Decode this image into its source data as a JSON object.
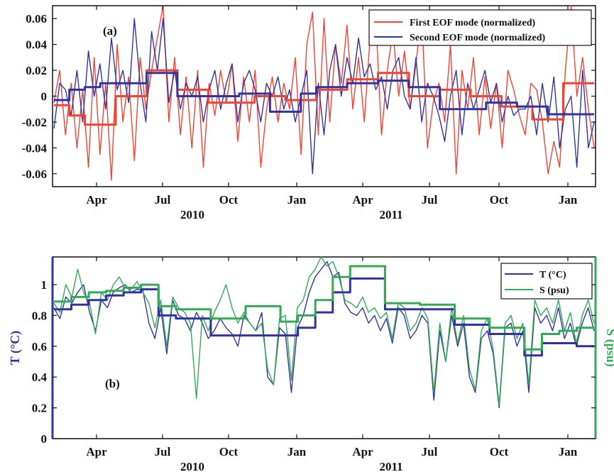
{
  "chart_data": [
    {
      "type": "line",
      "panel_label": "(a)",
      "x_ticks": [
        "Apr",
        "Jul",
        "Oct",
        "Jan",
        "Apr",
        "Jul",
        "Oct",
        "Jan"
      ],
      "x_year_labels": [
        "2010",
        "2011"
      ],
      "y_ticks": [
        "0.06",
        "0.04",
        "0.02",
        "0",
        "-0.02",
        "-0.04",
        "-0.06"
      ],
      "ylim": [
        -0.07,
        0.07
      ],
      "xlim": [
        "2010-02-10",
        "2012-02-10"
      ],
      "legend_position": "top-right",
      "grid": false,
      "series": [
        {
          "name": "First EOF mode (normalized)",
          "color": "#ee4433",
          "values": [
            -0.005,
            0.02,
            -0.03,
            0.01,
            -0.04,
            0.005,
            -0.055,
            0.03,
            -0.045,
            0.01,
            -0.065,
            0.04,
            -0.02,
            0.015,
            -0.05,
            0.03,
            -0.01,
            0.02,
            0.045,
            0.07,
            -0.02,
            0.03,
            -0.03,
            0.015,
            -0.04,
            0.02,
            -0.055,
            0.01,
            -0.015,
            0.02,
            -0.005,
            0.025,
            -0.035,
            0.015,
            -0.02,
            0.02,
            -0.055,
            -0.01,
            0.015,
            -0.02,
            0.01,
            -0.01,
            0.03,
            -0.045,
            0.04,
            0.065,
            -0.03,
            0.06,
            -0.02,
            0.04,
            0.01,
            0.055,
            -0.01,
            0.03,
            -0.02,
            0.045,
            0.06,
            -0.03,
            0.02,
            0.05,
            0.0,
            0.035,
            -0.01,
            0.025,
            0.065,
            -0.04,
            -0.005,
            0.01,
            -0.02,
            0.04,
            -0.06,
            0.02,
            -0.01,
            0.03,
            -0.03,
            0.015,
            -0.025,
            0.01,
            -0.04,
            0.02,
            0.005,
            -0.015,
            -0.03,
            0.01,
            0.005,
            -0.02,
            -0.06,
            -0.035,
            -0.055,
            0.02,
            0.07,
            0.0,
            0.03,
            -0.01,
            -0.04
          ]
        },
        {
          "name": "Second EOF mode (normalized)",
          "color": "#3333a0",
          "values": [
            -0.025,
            0.01,
            0.005,
            -0.015,
            0.02,
            -0.02,
            0.035,
            0.0,
            0.025,
            -0.01,
            0.045,
            0.005,
            0.02,
            -0.005,
            0.06,
            0.01,
            -0.02,
            0.05,
            0.02,
            0.06,
            -0.005,
            0.02,
            -0.01,
            0.01,
            0.0,
            0.015,
            -0.02,
            0.005,
            0.02,
            -0.01,
            0.01,
            0.025,
            -0.02,
            0.01,
            0.02,
            0.005,
            -0.02,
            0.01,
            0.0,
            0.015,
            -0.01,
            0.005,
            -0.02,
            0.0,
            0.02,
            -0.06,
            0.01,
            -0.03,
            0.02,
            0.04,
            0.0,
            0.03,
            0.01,
            0.045,
            0.015,
            0.025,
            0.005,
            0.015,
            -0.01,
            0.02,
            0.03,
            0.0,
            -0.01,
            0.03,
            -0.02,
            0.01,
            0.0,
            -0.015,
            -0.035,
            0.0,
            0.02,
            -0.03,
            0.01,
            -0.01,
            0.005,
            0.02,
            -0.005,
            0.01,
            -0.02,
            0.0,
            -0.015,
            -0.01,
            -0.01,
            0.0,
            -0.03,
            0.01,
            -0.02,
            0.015,
            -0.04,
            -0.01,
            0.0,
            -0.055,
            0.02,
            -0.04,
            -0.02
          ]
        },
        {
          "name": "",
          "color": "#ee4433",
          "step": true,
          "values": [
            -0.007,
            -0.015,
            -0.022,
            -0.022,
            0.0,
            0.0,
            0.02,
            0.02,
            0.005,
            0.005,
            -0.005,
            -0.005,
            -0.005,
            0.0,
            0.0,
            -0.003,
            -0.003,
            0.005,
            0.005,
            0.013,
            0.013,
            0.018,
            0.018,
            0.0,
            0.0,
            0.005,
            0.005,
            0.0,
            0.0,
            -0.008,
            -0.008,
            -0.018,
            -0.018,
            0.01,
            0.01
          ]
        },
        {
          "name": "",
          "color": "#3333a0",
          "step": true,
          "values": [
            -0.003,
            0.005,
            0.007,
            0.01,
            0.01,
            0.01,
            0.018,
            0.018,
            0.0,
            0.0,
            0.0,
            0.0,
            0.002,
            0.002,
            -0.012,
            -0.012,
            0.002,
            0.007,
            0.007,
            0.01,
            0.01,
            0.012,
            0.012,
            0.007,
            0.007,
            -0.01,
            -0.01,
            -0.01,
            -0.005,
            -0.005,
            -0.008,
            -0.008,
            -0.014,
            -0.014,
            -0.014
          ]
        }
      ]
    },
    {
      "type": "line",
      "panel_label": "(b)",
      "x_ticks": [
        "Apr",
        "Jul",
        "Oct",
        "Jan",
        "Apr",
        "Jul",
        "Oct",
        "Jan"
      ],
      "x_year_labels": [
        "2010",
        "2011"
      ],
      "y_ticks": [
        "1",
        "0.8",
        "0.6",
        "0.4",
        "0.2",
        "0"
      ],
      "ylim": [
        0,
        1.18
      ],
      "xlim": [
        "2010-02-10",
        "2012-02-10"
      ],
      "ylabel_left": "T (°C)",
      "ylabel_right": "S (psu)",
      "legend_position": "top-right",
      "grid": false,
      "series": [
        {
          "name": "T (°C)",
          "color": "#3333a0",
          "values": [
            0.85,
            0.78,
            0.92,
            0.88,
            0.95,
            1.0,
            0.82,
            0.7,
            0.9,
            0.85,
            0.95,
            0.98,
            1.0,
            0.95,
            0.97,
            0.96,
            0.75,
            0.65,
            0.85,
            0.55,
            0.9,
            0.8,
            0.78,
            0.7,
            0.82,
            0.75,
            0.65,
            0.7,
            0.78,
            0.72,
            0.68,
            0.6,
            0.8,
            0.75,
            0.7,
            0.82,
            0.4,
            0.35,
            0.72,
            0.68,
            0.3,
            0.72,
            0.8,
            0.95,
            1.05,
            1.1,
            1.15,
            1.05,
            1.08,
            0.88,
            0.82,
            0.8,
            0.85,
            0.75,
            0.8,
            0.7,
            0.78,
            0.62,
            0.85,
            0.8,
            0.65,
            0.7,
            0.8,
            0.75,
            0.25,
            0.7,
            0.5,
            0.8,
            0.6,
            0.75,
            0.4,
            0.3,
            0.65,
            0.7,
            0.55,
            0.2,
            0.72,
            0.75,
            0.6,
            0.7,
            0.3,
            0.85,
            0.75,
            0.8,
            0.7,
            0.85,
            0.65,
            0.75,
            0.6,
            0.75,
            0.85,
            0.7
          ]
        },
        {
          "name": "S (psu)",
          "color": "#33aa55",
          "values": [
            0.88,
            0.82,
            1.0,
            0.92,
            1.1,
            0.95,
            0.88,
            0.68,
            0.95,
            0.9,
            1.0,
            1.05,
            0.98,
            0.97,
            1.02,
            0.95,
            0.88,
            0.72,
            0.9,
            0.6,
            0.92,
            0.85,
            0.82,
            0.75,
            0.26,
            0.8,
            0.7,
            0.82,
            0.9,
            1.0,
            0.85,
            0.75,
            0.82,
            0.75,
            0.7,
            0.75,
            0.45,
            0.35,
            0.78,
            0.8,
            0.38,
            0.85,
            0.9,
            1.05,
            1.1,
            1.18,
            1.12,
            1.15,
            1.05,
            0.9,
            0.88,
            0.85,
            0.92,
            0.82,
            0.85,
            0.78,
            0.82,
            0.65,
            0.88,
            0.85,
            0.7,
            0.75,
            0.85,
            0.78,
            0.3,
            0.75,
            0.5,
            0.85,
            0.62,
            0.8,
            0.45,
            0.32,
            0.7,
            0.78,
            0.58,
            0.22,
            0.75,
            0.8,
            0.65,
            0.75,
            0.35,
            0.9,
            0.8,
            0.85,
            0.75,
            0.9,
            0.7,
            0.82,
            0.62,
            0.8,
            0.9,
            0.75
          ]
        },
        {
          "name": "",
          "color": "#3333a0",
          "step": true,
          "values": [
            0.84,
            0.87,
            0.9,
            0.93,
            0.95,
            0.97,
            0.8,
            0.78,
            0.78,
            0.67,
            0.67,
            0.67,
            0.67,
            0.67,
            0.72,
            0.82,
            0.95,
            1.04,
            1.04,
            0.84,
            0.84,
            0.84,
            0.84,
            0.74,
            0.74,
            0.68,
            0.68,
            0.54,
            0.62,
            0.62,
            0.6
          ]
        },
        {
          "name": "",
          "color": "#33aa55",
          "step": true,
          "values": [
            0.89,
            0.92,
            0.95,
            0.96,
            0.98,
            1.0,
            0.86,
            0.84,
            0.84,
            0.78,
            0.78,
            0.86,
            0.86,
            0.76,
            0.8,
            0.9,
            1.05,
            1.12,
            1.12,
            0.88,
            0.88,
            0.87,
            0.87,
            0.78,
            0.78,
            0.72,
            0.72,
            0.58,
            0.68,
            0.7,
            0.72
          ]
        }
      ]
    }
  ]
}
